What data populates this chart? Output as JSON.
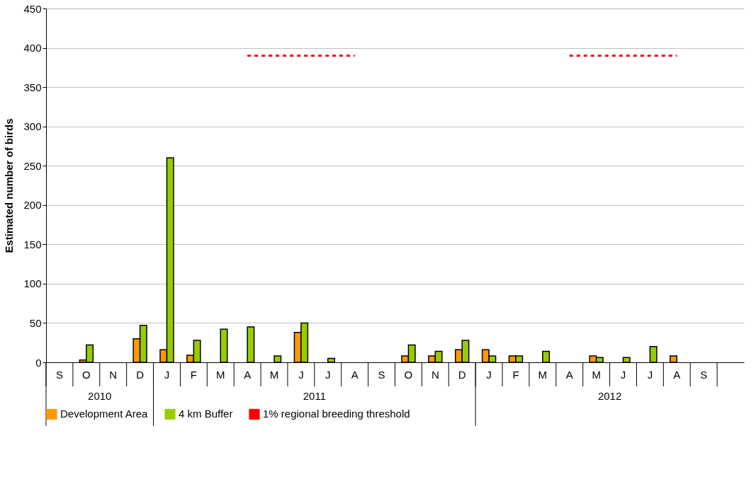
{
  "chart_data": {
    "type": "bar",
    "ylabel": "Estimated number of birds",
    "categories": [
      "S",
      "O",
      "N",
      "D",
      "J",
      "F",
      "M",
      "A",
      "M",
      "J",
      "J",
      "A",
      "S",
      "O",
      "N",
      "D",
      "J",
      "F",
      "M",
      "A",
      "M",
      "J",
      "J",
      "A",
      "S",
      null
    ],
    "series": [
      {
        "name": "Development Area",
        "color": "#ff9900",
        "values": [
          null,
          3,
          null,
          30,
          16,
          9,
          null,
          null,
          null,
          38,
          null,
          null,
          null,
          8,
          8,
          16,
          16,
          8,
          null,
          null,
          8,
          null,
          null,
          8,
          null,
          null
        ]
      },
      {
        "name": "4 km Buffer",
        "color": "#99cc00",
        "values": [
          null,
          22,
          null,
          47,
          260,
          28,
          42,
          45,
          8,
          50,
          5,
          null,
          null,
          22,
          14,
          28,
          8,
          8,
          14,
          null,
          6,
          6,
          20,
          null,
          null,
          null
        ]
      },
      {
        "name": "1% regional breeding threshold",
        "type": "line",
        "color": "#ff0000",
        "line_style": "dashed",
        "values": [
          null,
          null,
          null,
          null,
          null,
          null,
          null,
          390,
          390,
          390,
          390,
          390,
          null,
          null,
          null,
          null,
          null,
          null,
          null,
          390,
          390,
          390,
          390,
          390,
          null,
          null
        ]
      }
    ],
    "ylim": [
      0,
      450
    ],
    "yticks": [
      0,
      50,
      100,
      150,
      200,
      250,
      300,
      350,
      400,
      450
    ],
    "grid": "y",
    "legend": "bottom",
    "annotations": [
      "2010",
      "2011",
      "2012"
    ]
  }
}
